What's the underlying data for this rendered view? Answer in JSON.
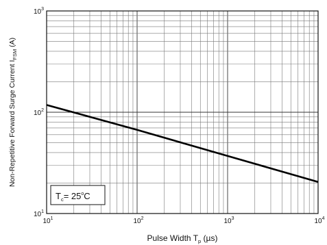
{
  "chart_data": {
    "type": "line",
    "xscale": "log",
    "yscale": "log",
    "xlim": [
      10,
      10000
    ],
    "ylim": [
      10,
      1000
    ],
    "grid": true,
    "xlabel_main": "Pulse Width T",
    "xlabel_sub": "p",
    "xlabel_unit": " (µs)",
    "ylabel_main": "Non-Repetitive Forward Surge Current I",
    "ylabel_sub": "FSM",
    "ylabel_unit": " (A)",
    "x_ticks": [
      {
        "base": "10",
        "exp": "1",
        "value": 10
      },
      {
        "base": "10",
        "exp": "2",
        "value": 100
      },
      {
        "base": "10",
        "exp": "3",
        "value": 1000
      },
      {
        "base": "10",
        "exp": "4",
        "value": 10000
      }
    ],
    "y_ticks": [
      {
        "base": "10",
        "exp": "1",
        "value": 10
      },
      {
        "base": "10",
        "exp": "2",
        "value": 100
      },
      {
        "base": "10",
        "exp": "3",
        "value": 1000
      }
    ],
    "series": [
      {
        "x": [
          10,
          100,
          1000,
          10000
        ],
        "y": [
          118,
          67,
          37,
          20.5
        ]
      }
    ],
    "annotation": {
      "main": "T",
      "sub": "c",
      "rest": "= 25",
      "deg": "o",
      "unit": "C"
    },
    "legend_placement": "bottom-left"
  }
}
